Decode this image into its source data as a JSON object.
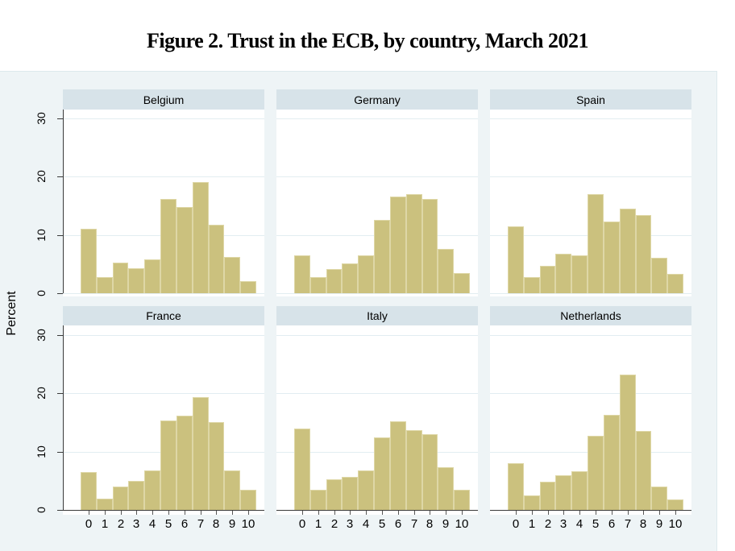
{
  "title": "Figure 2. Trust in the ECB, by country, March 2021",
  "ylabel": "Percent",
  "chart_data": {
    "type": "bar",
    "subtype": "histogram_small_multiples",
    "title": "Figure 2. Trust in the ECB, by country, March 2021",
    "xlabel": "",
    "ylabel": "Percent",
    "x": [
      "0",
      "1",
      "2",
      "3",
      "4",
      "5",
      "6",
      "7",
      "8",
      "9",
      "10"
    ],
    "ylim": [
      0,
      30
    ],
    "yticks": [
      "0",
      "10",
      "20",
      "30"
    ],
    "ytick_values": [
      0,
      10,
      20,
      30
    ],
    "grid": true,
    "legend": "none",
    "panels": [
      {
        "name": "Belgium",
        "values": [
          11.0,
          2.7,
          5.2,
          4.3,
          5.8,
          16.2,
          14.8,
          19.0,
          11.7,
          6.2,
          2.1
        ]
      },
      {
        "name": "Germany",
        "values": [
          6.5,
          2.7,
          4.2,
          5.1,
          6.5,
          12.5,
          16.5,
          17.0,
          16.1,
          7.6,
          3.5
        ]
      },
      {
        "name": "Spain",
        "values": [
          11.4,
          2.8,
          4.7,
          6.8,
          6.5,
          17.0,
          12.3,
          14.5,
          13.4,
          6.1,
          3.3
        ]
      },
      {
        "name": "France",
        "values": [
          6.5,
          1.9,
          4.0,
          4.9,
          6.7,
          15.3,
          16.2,
          19.3,
          15.1,
          6.7,
          3.4
        ]
      },
      {
        "name": "Italy",
        "values": [
          13.9,
          3.4,
          5.3,
          5.7,
          6.7,
          12.4,
          15.2,
          13.7,
          13.0,
          7.3,
          3.4
        ]
      },
      {
        "name": "Netherlands",
        "values": [
          8.0,
          2.5,
          4.8,
          5.9,
          6.6,
          12.7,
          16.3,
          23.2,
          13.5,
          4.0,
          1.8
        ]
      }
    ],
    "colors": {
      "bar_fill": "#cbc17e",
      "bar_border": "#ded7a6",
      "panel_header_bg": "#d7e3e9",
      "canvas_bg": "#eef4f6",
      "plot_bg": "#ffffff",
      "gridline": "#e2edf1",
      "axis_line": "#3a3a3a",
      "tick": "#555555",
      "text": "#000000"
    }
  }
}
